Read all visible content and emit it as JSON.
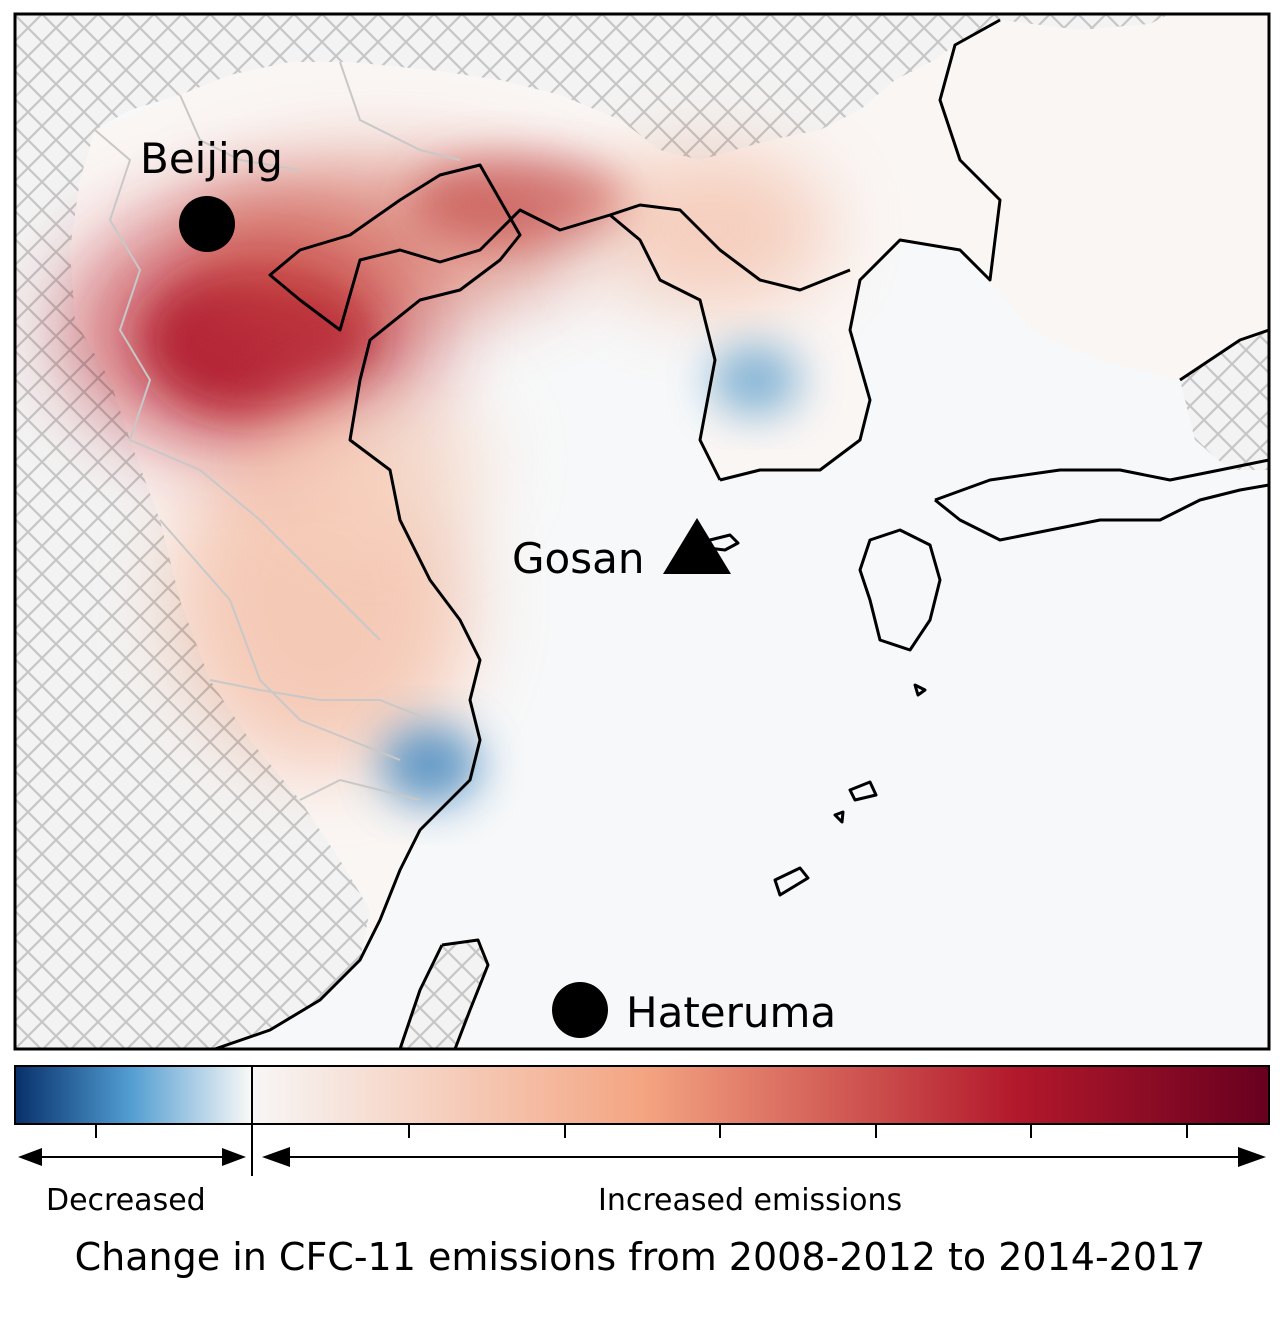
{
  "map": {
    "features": [
      {
        "kind": "city",
        "marker": "circle",
        "label": "Beijing"
      },
      {
        "kind": "station",
        "marker": "triangle",
        "label": "Gosan"
      },
      {
        "kind": "station",
        "marker": "circle",
        "label": "Hateruma"
      }
    ],
    "layers": {
      "colormap": "blue-white-red diverging",
      "masked_land_pattern": "grey crosshatch",
      "coastline_color": "#000000",
      "border_color": "#c8c8c8"
    },
    "emission_hotspots": [
      {
        "region": "around Beijing / Hebei",
        "sign": "increase",
        "strength": "strong"
      },
      {
        "region": "Liaoning / north Bohai coast",
        "sign": "increase",
        "strength": "moderate"
      },
      {
        "region": "North Korea",
        "sign": "increase",
        "strength": "weak"
      },
      {
        "region": "Jiangsu / Shanghai area",
        "sign": "increase",
        "strength": "weak"
      },
      {
        "region": "west-central South Korea",
        "sign": "decrease",
        "strength": "moderate"
      },
      {
        "region": "Zhejiang coast",
        "sign": "decrease",
        "strength": "moderate"
      }
    ]
  },
  "colorbar": {
    "decreased_label": "Decreased",
    "increased_label": "Increased emissions",
    "caption": "Change in CFC-11 emissions from 2008-2012 to 2014-2017",
    "colors": {
      "strong_decrease": "#08306b",
      "weak_decrease": "#4f9bd0",
      "zero": "#f7f7f7",
      "weak_increase": "#f4a582",
      "strong_increase": "#b2182b",
      "max_increase": "#67001f"
    }
  }
}
